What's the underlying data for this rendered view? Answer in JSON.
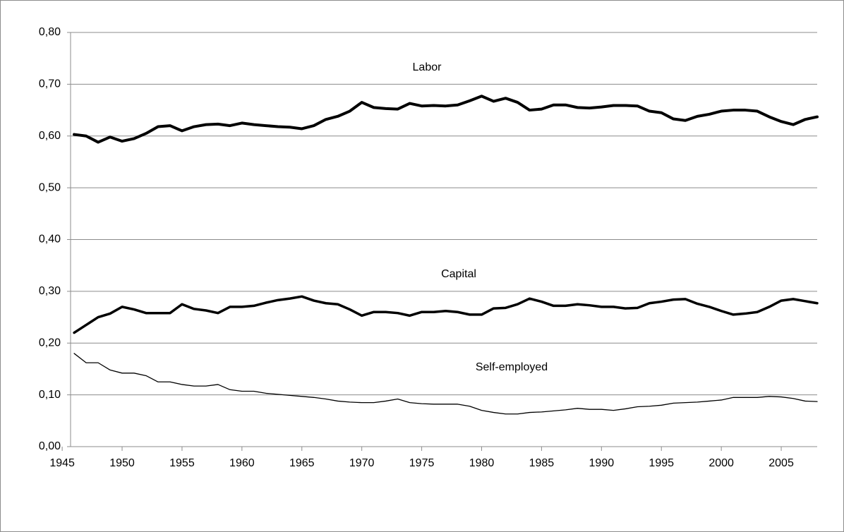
{
  "chart_data": {
    "type": "line",
    "x": [
      1946,
      1947,
      1948,
      1949,
      1950,
      1951,
      1952,
      1953,
      1954,
      1955,
      1956,
      1957,
      1958,
      1959,
      1960,
      1961,
      1962,
      1963,
      1964,
      1965,
      1966,
      1967,
      1968,
      1969,
      1970,
      1971,
      1972,
      1973,
      1974,
      1975,
      1976,
      1977,
      1978,
      1979,
      1980,
      1981,
      1982,
      1983,
      1984,
      1985,
      1986,
      1987,
      1988,
      1989,
      1990,
      1991,
      1992,
      1993,
      1994,
      1995,
      1996,
      1997,
      1998,
      1999,
      2000,
      2001,
      2002,
      2003,
      2004,
      2005,
      2006,
      2007,
      2008
    ],
    "series": [
      {
        "name": "Labor",
        "color": "#000000",
        "linewidth": 4,
        "values": [
          0.603,
          0.6,
          0.588,
          0.598,
          0.59,
          0.595,
          0.605,
          0.618,
          0.62,
          0.61,
          0.618,
          0.622,
          0.623,
          0.62,
          0.625,
          0.622,
          0.62,
          0.618,
          0.617,
          0.614,
          0.62,
          0.632,
          0.638,
          0.648,
          0.665,
          0.655,
          0.653,
          0.652,
          0.663,
          0.658,
          0.659,
          0.658,
          0.66,
          0.668,
          0.677,
          0.667,
          0.673,
          0.665,
          0.65,
          0.652,
          0.66,
          0.66,
          0.655,
          0.654,
          0.656,
          0.659,
          0.659,
          0.658,
          0.648,
          0.645,
          0.633,
          0.63,
          0.638,
          0.642,
          0.648,
          0.65,
          0.65,
          0.648,
          0.637,
          0.628,
          0.622,
          0.632,
          0.637
        ]
      },
      {
        "name": "Capital",
        "color": "#000000",
        "linewidth": 3.5,
        "values": [
          0.22,
          0.235,
          0.25,
          0.257,
          0.27,
          0.265,
          0.258,
          0.258,
          0.258,
          0.275,
          0.266,
          0.263,
          0.258,
          0.27,
          0.27,
          0.272,
          0.278,
          0.283,
          0.286,
          0.29,
          0.282,
          0.277,
          0.275,
          0.265,
          0.253,
          0.26,
          0.26,
          0.258,
          0.253,
          0.26,
          0.26,
          0.262,
          0.26,
          0.255,
          0.255,
          0.267,
          0.268,
          0.275,
          0.286,
          0.28,
          0.272,
          0.272,
          0.275,
          0.273,
          0.27,
          0.27,
          0.267,
          0.268,
          0.277,
          0.28,
          0.284,
          0.285,
          0.276,
          0.27,
          0.262,
          0.255,
          0.257,
          0.26,
          0.27,
          0.282,
          0.285,
          0.281,
          0.277
        ]
      },
      {
        "name": "Self-employed",
        "color": "#000000",
        "linewidth": 1.3,
        "values": [
          0.18,
          0.162,
          0.162,
          0.148,
          0.142,
          0.142,
          0.137,
          0.125,
          0.125,
          0.12,
          0.117,
          0.117,
          0.12,
          0.11,
          0.107,
          0.107,
          0.103,
          0.101,
          0.099,
          0.097,
          0.095,
          0.092,
          0.088,
          0.086,
          0.085,
          0.085,
          0.088,
          0.092,
          0.085,
          0.083,
          0.082,
          0.082,
          0.082,
          0.078,
          0.07,
          0.066,
          0.063,
          0.063,
          0.066,
          0.067,
          0.069,
          0.071,
          0.074,
          0.072,
          0.072,
          0.07,
          0.073,
          0.077,
          0.078,
          0.08,
          0.084,
          0.085,
          0.086,
          0.088,
          0.09,
          0.095,
          0.095,
          0.095,
          0.097,
          0.096,
          0.093,
          0.088,
          0.087
        ]
      }
    ],
    "xlim": [
      1945.7,
      2008
    ],
    "xticks": [
      1945,
      1950,
      1955,
      1960,
      1965,
      1970,
      1975,
      1980,
      1985,
      1990,
      1995,
      2000,
      2005
    ],
    "ylim": [
      0,
      0.8
    ],
    "yticks": [
      {
        "value": 0,
        "label": "0,00"
      },
      {
        "value": 0.1,
        "label": "0,10"
      },
      {
        "value": 0.2,
        "label": "0,20"
      },
      {
        "value": 0.3,
        "label": "0,30"
      },
      {
        "value": 0.4,
        "label": "0,40"
      },
      {
        "value": 0.5,
        "label": "0,50"
      },
      {
        "value": 0.6,
        "label": "0,60"
      },
      {
        "value": 0.7,
        "label": "0,70"
      },
      {
        "value": 0.8,
        "label": "0,80"
      }
    ],
    "grid": true
  }
}
